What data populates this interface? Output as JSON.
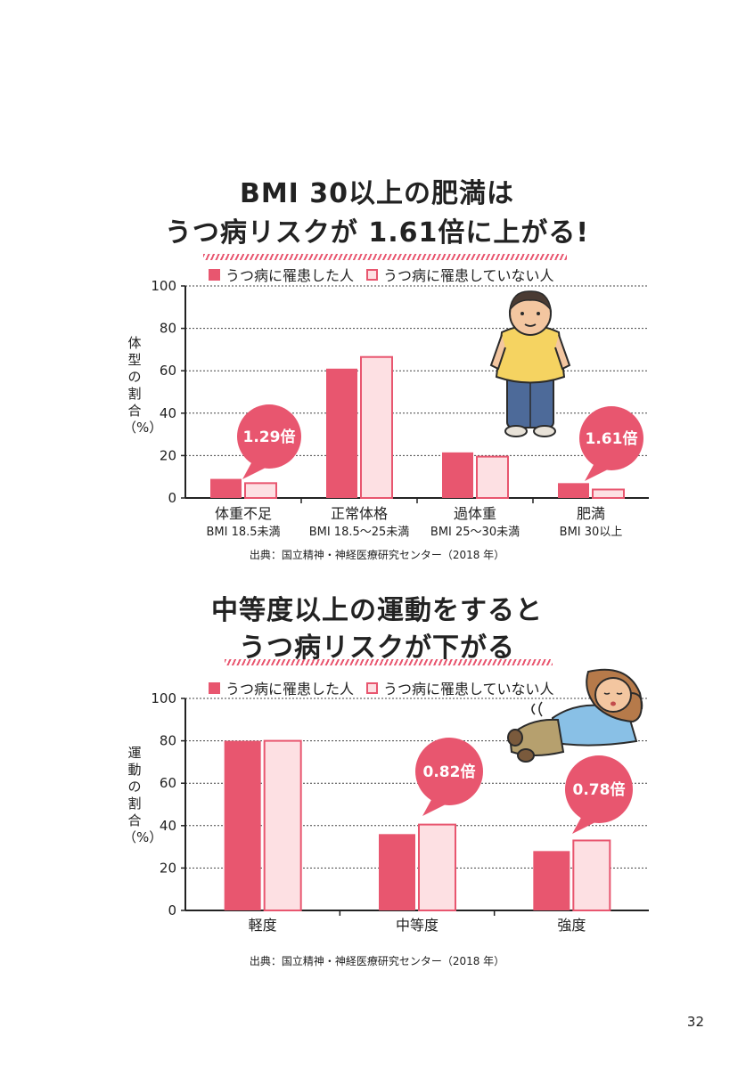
{
  "page_number": "32",
  "charts": [
    {
      "title_lines": [
        "BMI 30以上の肥満は",
        "うつ病リスクが 1.61倍に上がる!"
      ],
      "source": "出典：国立精神・神経医療研究センター（2018 年）",
      "ylabel": "体型の割合（%）"
    },
    {
      "title_lines": [
        "中等度以上の運動をすると",
        "うつ病リスクが下がる"
      ],
      "source": "出典：国立精神・神経医療研究センター（2018 年）",
      "ylabel": "運動の割合（%）"
    }
  ],
  "chart_data": [
    {
      "type": "bar",
      "title": "BMI 30以上の肥満は うつ病リスクが 1.61倍に上がる!",
      "ylabel": "体型の割合（%）",
      "ylim": [
        0,
        100
      ],
      "yticks": [
        0,
        20,
        40,
        60,
        80,
        100
      ],
      "grid": true,
      "legend_position": "top",
      "categories": [
        "体重不足",
        "正常体格",
        "過体重",
        "肥満"
      ],
      "category_sublabels": [
        "BMI 18.5未満",
        "BMI 18.5～25未満",
        "BMI 25～30未満",
        "BMI 30以上"
      ],
      "series": [
        {
          "name": "うつ病に罹患した人",
          "values": [
            9,
            61,
            21.5,
            7
          ],
          "color": "#e8566f"
        },
        {
          "name": "うつ病に罹患していない人",
          "values": [
            7,
            66.5,
            19.5,
            4
          ],
          "color": "#fde0e3"
        }
      ],
      "annotations": [
        {
          "text": "1.29倍",
          "category": "体重不足"
        },
        {
          "text": "1.61倍",
          "category": "肥満"
        }
      ]
    },
    {
      "type": "bar",
      "title": "中等度以上の運動をすると うつ病リスクが下がる",
      "ylabel": "運動の割合（%）",
      "ylim": [
        0,
        100
      ],
      "yticks": [
        0,
        20,
        40,
        60,
        80,
        100
      ],
      "grid": true,
      "legend_position": "top",
      "categories": [
        "軽度",
        "中等度",
        "強度"
      ],
      "category_sublabels": [
        "",
        "",
        ""
      ],
      "series": [
        {
          "name": "うつ病に罹患した人",
          "values": [
            80,
            36,
            28
          ],
          "color": "#e8566f"
        },
        {
          "name": "うつ病に罹患していない人",
          "values": [
            80,
            40.5,
            33
          ],
          "color": "#fde0e3"
        }
      ],
      "annotations": [
        {
          "text": "0.82倍",
          "category": "中等度"
        },
        {
          "text": "0.78倍",
          "category": "強度"
        }
      ]
    }
  ]
}
